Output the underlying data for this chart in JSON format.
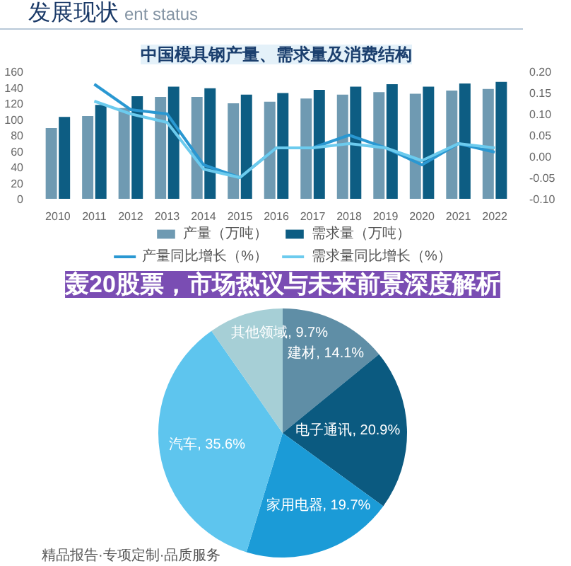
{
  "chart_data": [
    {
      "type": "bar",
      "title": "中国模具钢产量、需求量及消费结构",
      "annotations": [
        "发展现状",
        "ent status"
      ],
      "categories": [
        "2010",
        "2011",
        "2012",
        "2013",
        "2014",
        "2015",
        "2016",
        "2017",
        "2018",
        "2019",
        "2020",
        "2021",
        "2022"
      ],
      "series": [
        {
          "name": "产量（万吨）",
          "color": "#6f9ab2",
          "values": [
            89,
            104,
            114,
            128,
            128,
            120,
            122,
            126,
            131,
            134,
            132,
            136,
            138
          ]
        },
        {
          "name": "需求量（万吨）",
          "color": "#0d5d83",
          "values": [
            103,
            118,
            129,
            141,
            139,
            131,
            133,
            137,
            141,
            144,
            141,
            145,
            147
          ]
        },
        {
          "name": "产量同比增长（%）",
          "type": "line",
          "axis": "y2",
          "color": "#2a98d2",
          "values": [
            null,
            0.17,
            0.11,
            0.1,
            -0.02,
            -0.05,
            0.02,
            0.02,
            0.05,
            0.02,
            -0.02,
            0.03,
            0.01
          ]
        },
        {
          "name": "需求量同比增长（%）",
          "type": "line",
          "axis": "y2",
          "color": "#6ccbee",
          "values": [
            null,
            0.13,
            0.1,
            0.08,
            -0.03,
            -0.05,
            0.02,
            0.02,
            0.03,
            0.02,
            -0.01,
            0.03,
            0.02
          ]
        }
      ],
      "ylim": [
        0,
        160
      ],
      "yticks": [
        0,
        20,
        40,
        60,
        80,
        100,
        120,
        140,
        160
      ],
      "y2lim": [
        -0.1,
        0.2
      ],
      "y2ticks": [
        {
          "value": -0.1,
          "label": "-0.10"
        },
        {
          "value": -0.05,
          "label": "-0.05"
        },
        {
          "value": 0,
          "label": "0.00"
        },
        {
          "value": 0.05,
          "label": "0.05"
        },
        {
          "value": 0.1,
          "label": "0.10"
        },
        {
          "value": 0.15,
          "label": "0.15"
        },
        {
          "value": 0.2,
          "label": "0.20"
        }
      ],
      "legend": "bottom"
    },
    {
      "type": "pie",
      "categories": [
        "建材",
        "电子通讯",
        "家用电器",
        "汽车",
        "其他领域"
      ],
      "values": [
        14.1,
        20.9,
        19.7,
        35.6,
        9.7
      ],
      "colors": [
        "#5f8ea6",
        "#0b5a80",
        "#1b9bd7",
        "#5ec5ee",
        "#a6cfd6"
      ],
      "value_labels": [
        "14.1%",
        "20.9%",
        "19.7%",
        "35.6%",
        "9.7%"
      ],
      "annotations": [
        "轰20股票，市场热议与未来前景深度解析",
        "精品报告·专项定制·品质服务"
      ]
    }
  ]
}
